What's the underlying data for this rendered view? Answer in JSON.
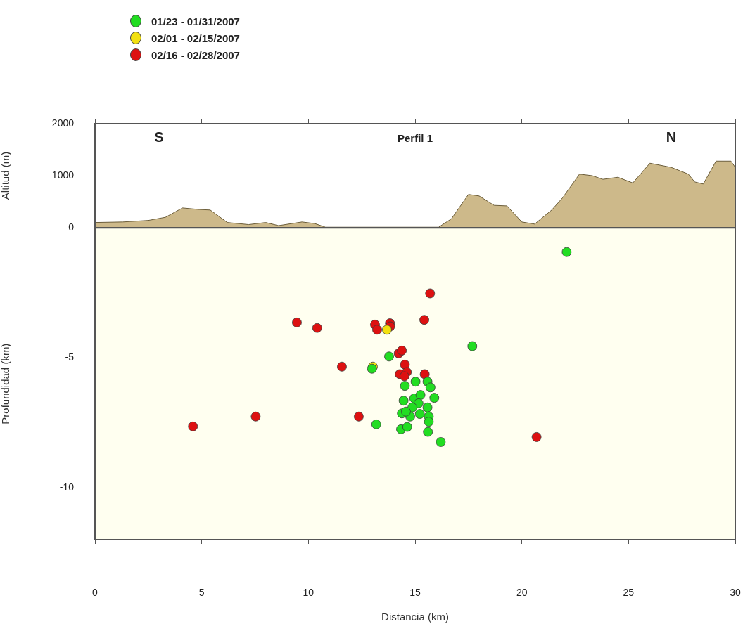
{
  "chart_data": [
    {
      "type": "area",
      "title": "Perfil 1",
      "ylabel": "Altitud (m)",
      "annotations": [
        "S",
        "N"
      ],
      "x": [
        0,
        1.3,
        2.5,
        3.3,
        4.1,
        4.9,
        5.4,
        6.2,
        7.2,
        8.0,
        8.6,
        9.7,
        10.3,
        10.8,
        16.1,
        16.7,
        17.5,
        18.0,
        18.7,
        19.3,
        20.0,
        20.6,
        21.4,
        21.9,
        22.7,
        23.3,
        23.8,
        24.5,
        25.2,
        26.0,
        27.0,
        27.8,
        28.1,
        28.5,
        29.1,
        29.8,
        30
      ],
      "values": [
        100,
        110,
        140,
        200,
        380,
        350,
        340,
        100,
        60,
        100,
        40,
        110,
        80,
        10,
        10,
        170,
        640,
        610,
        430,
        420,
        110,
        70,
        340,
        570,
        1030,
        1000,
        930,
        970,
        860,
        1240,
        1160,
        1030,
        880,
        840,
        1280,
        1280,
        1160
      ],
      "color": "#cdb98a",
      "xlim": [
        0,
        30
      ],
      "xticks": [
        {
          "value": 0,
          "label": null
        },
        {
          "value": 5,
          "label": null
        },
        {
          "value": 10,
          "label": null
        },
        {
          "value": 15,
          "label": null
        },
        {
          "value": 20,
          "label": null
        },
        {
          "value": 25,
          "label": null
        },
        {
          "value": 30,
          "label": null
        }
      ],
      "ylim": [
        0,
        2000
      ],
      "yticks": [
        0,
        1000,
        2000
      ],
      "tick_labels": "y",
      "grid": false
    },
    {
      "type": "scatter",
      "xlabel": "Distancia (km)",
      "ylabel": "Profundidad (km)",
      "legend": "top left",
      "marker": "circle",
      "grid": false,
      "xlim": [
        0,
        30
      ],
      "xticks": [
        0,
        5,
        10,
        15,
        20,
        25,
        30
      ],
      "ylim": [
        -12,
        0
      ],
      "yticks": [
        -10,
        -5
      ],
      "series": [
        {
          "name": "01/23 - 01/31/2007",
          "color": "#22dd22",
          "x": [
            22.1,
            17.68,
            13.78,
            12.98,
            15.02,
            14.52,
            15.58,
            15.72,
            15.9,
            14.46,
            14.96,
            15.25,
            15.16,
            15.58,
            14.87,
            14.38,
            14.77,
            15.22,
            15.64,
            15.64,
            13.18,
            14.34,
            14.63,
            15.6,
            16.2,
            14.57
          ],
          "values": [
            -0.93,
            -4.55,
            -4.95,
            -5.42,
            -5.92,
            -6.08,
            -5.92,
            -6.14,
            -6.54,
            -6.65,
            -6.56,
            -6.43,
            -6.75,
            -6.91,
            -6.91,
            -7.14,
            -7.26,
            -7.16,
            -7.26,
            -7.46,
            -7.56,
            -7.75,
            -7.66,
            -7.85,
            -8.24,
            -7.07
          ]
        },
        {
          "name": "02/01 - 02/15/2007",
          "color": "#f2e010",
          "x": [
            13.02,
            13.68
          ],
          "values": [
            -5.34,
            -3.92
          ]
        },
        {
          "name": "02/16 - 02/28/2007",
          "color": "#dd1111",
          "x": [
            15.7,
            9.46,
            10.41,
            13.12,
            13.22,
            13.82,
            13.83,
            15.43,
            14.23,
            14.38,
            11.57,
            14.52,
            14.28,
            14.61,
            14.5,
            15.45,
            12.36,
            7.53,
            4.59,
            20.69
          ],
          "values": [
            -2.52,
            -3.64,
            -3.85,
            -3.72,
            -3.92,
            -3.67,
            -3.79,
            -3.54,
            -4.83,
            -4.72,
            -5.34,
            -5.26,
            -5.63,
            -5.55,
            -5.71,
            -5.63,
            -7.26,
            -7.26,
            -7.64,
            -8.05
          ]
        }
      ]
    }
  ]
}
